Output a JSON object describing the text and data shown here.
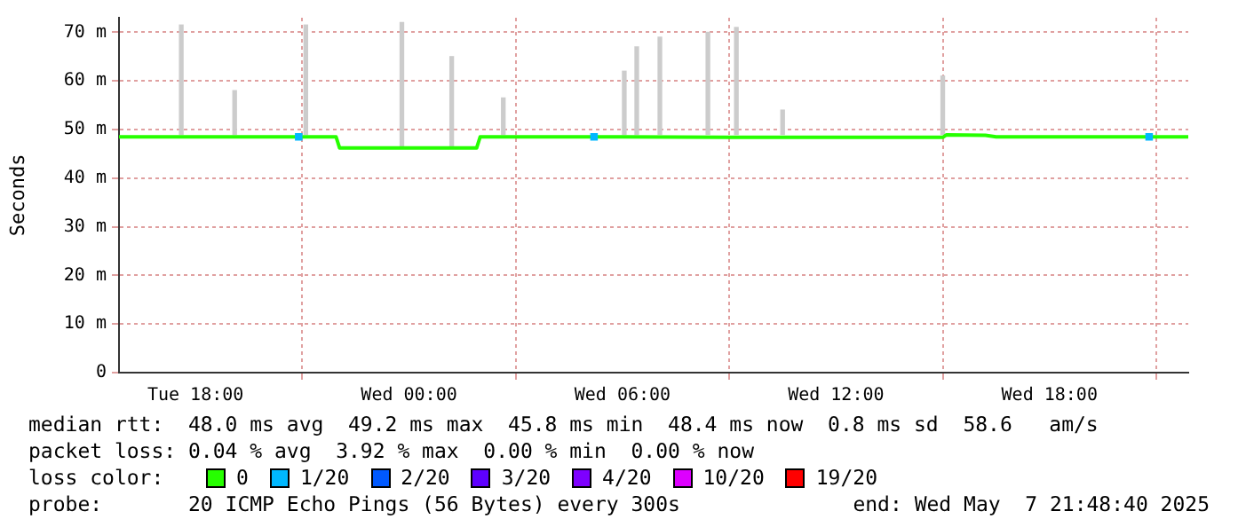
{
  "chart_data": {
    "type": "line",
    "ylabel": "Seconds",
    "xlim": [
      "2025-05-06T15:51",
      "2025-05-07T21:54"
    ],
    "xticks": [
      {
        "value": "2025-05-06T18:00",
        "label": "Tue 18:00"
      },
      {
        "value": "2025-05-07T00:00",
        "label": "Wed 00:00"
      },
      {
        "value": "2025-05-07T06:00",
        "label": "Wed 06:00"
      },
      {
        "value": "2025-05-07T12:00",
        "label": "Wed 12:00"
      },
      {
        "value": "2025-05-07T18:00",
        "label": "Wed 18:00"
      }
    ],
    "ylim": [
      0,
      73
    ],
    "yticks": [
      0,
      {
        "value": 10,
        "label": "10 m"
      },
      {
        "value": 20,
        "label": "20 m"
      },
      {
        "value": 30,
        "label": "30 m"
      },
      {
        "value": 40,
        "label": "40 m"
      },
      {
        "value": 50,
        "label": "50 m"
      },
      {
        "value": 60,
        "label": "60 m"
      },
      {
        "value": 70,
        "label": "70 m"
      }
    ],
    "grid": true,
    "legend": "bottom",
    "legend_title": "loss color:",
    "series": [
      {
        "type": "bar",
        "color": "#cccccc",
        "x": [
          "2025-05-06T17:36",
          "2025-05-06T19:06",
          "2025-05-06T21:06",
          "2025-05-06T23:48",
          "2025-05-07T01:12",
          "2025-05-07T02:39",
          "2025-05-07T06:03",
          "2025-05-07T06:24",
          "2025-05-07T07:03",
          "2025-05-07T08:24",
          "2025-05-07T09:12",
          "2025-05-07T10:30",
          "2025-05-07T15:00"
        ],
        "base": [
          49,
          49,
          49,
          46.5,
          46.5,
          49,
          49,
          49,
          49,
          49,
          49,
          49,
          49
        ],
        "values": [
          22.5,
          9,
          22.5,
          25.5,
          18.5,
          7.5,
          13,
          18,
          20,
          21,
          22,
          5,
          12
        ]
      },
      {
        "name": "0",
        "color": "#26ff00",
        "x": [
          "2025-05-06T15:51",
          "2025-05-06T21:57",
          "2025-05-06T22:03",
          "2025-05-07T01:54",
          "2025-05-07T02:00",
          "2025-05-07T06:00",
          "2025-05-07T09:00",
          "2025-05-07T15:00",
          "2025-05-07T15:06",
          "2025-05-07T16:12",
          "2025-05-07T16:30",
          "2025-05-07T21:54"
        ],
        "values": [
          48.5,
          48.5,
          46.2,
          46.2,
          48.5,
          48.5,
          48.4,
          48.4,
          48.9,
          48.8,
          48.5,
          48.5
        ]
      },
      {
        "name": "1/20",
        "type": "scatter",
        "color": "#00b8ff",
        "marker": "square",
        "x": [
          "2025-05-06T20:54",
          "2025-05-07T05:12",
          "2025-05-07T20:48"
        ],
        "values": [
          48.5,
          48.5,
          48.5
        ]
      },
      {
        "name": "2/20",
        "type": "scatter",
        "color": "#0059ff",
        "marker": "square"
      },
      {
        "name": "3/20",
        "type": "scatter",
        "color": "#5e00ff",
        "marker": "square"
      },
      {
        "name": "4/20",
        "type": "scatter",
        "color": "#7e00ff",
        "marker": "square"
      },
      {
        "name": "10/20",
        "type": "scatter",
        "color": "#dd00ff",
        "marker": "square"
      },
      {
        "name": "19/20",
        "type": "scatter",
        "color": "#ff0000",
        "marker": "square"
      }
    ],
    "annotations": [
      "median rtt:  48.0 ms avg  49.2 ms max  45.8 ms min  48.4 ms now  0.8 ms sd  58.6   am/s",
      "packet loss: 0.04 % avg  3.92 % max  0.00 % min  0.00 % now",
      "probe:       20 ICMP Echo Pings (56 Bytes) every 300s",
      "end: Wed May  7 21:48:40 2025"
    ]
  }
}
